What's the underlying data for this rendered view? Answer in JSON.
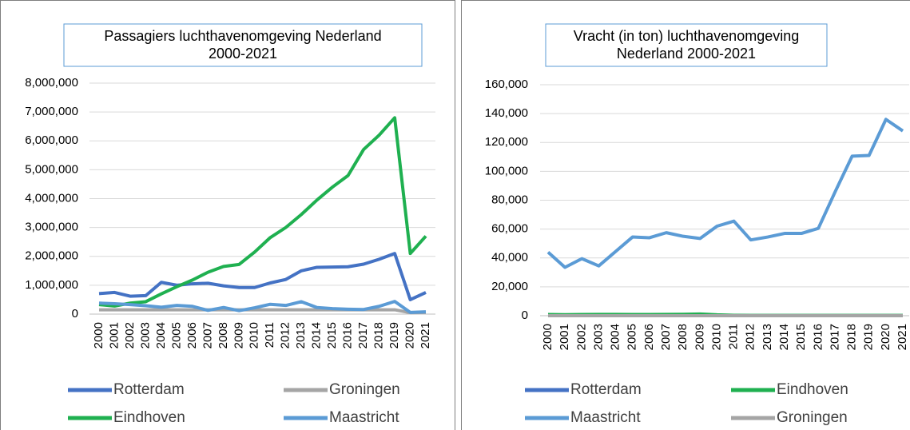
{
  "chart_data": [
    {
      "type": "line",
      "title": [
        "Passagiers luchthavenomgeving Nederland",
        "2000-2021"
      ],
      "categories": [
        "2000",
        "2001",
        "2002",
        "2003",
        "2004",
        "2005",
        "2006",
        "2007",
        "2008",
        "2009",
        "2010",
        "2011",
        "2012",
        "2013",
        "2014",
        "2015",
        "2016",
        "2017",
        "2018",
        "2019",
        "2020",
        "2021"
      ],
      "ylim": [
        0,
        8000000
      ],
      "yticks": [
        0,
        {
          "value": 1000000,
          "label": "1,000,000"
        },
        {
          "value": 2000000,
          "label": "2,000,000"
        },
        {
          "value": 3000000,
          "label": "3,000,000"
        },
        {
          "value": 4000000,
          "label": "4,000,000"
        },
        {
          "value": 5000000,
          "label": "5,000,000"
        },
        {
          "value": 6000000,
          "label": "6,000,000"
        },
        {
          "value": 7000000,
          "label": "7,000,000"
        },
        {
          "value": 8000000,
          "label": "8,000,000"
        }
      ],
      "grid": true,
      "series": [
        {
          "name": "Rotterdam",
          "color": "#4472c4",
          "values": [
            710000,
            750000,
            620000,
            640000,
            1100000,
            1000000,
            1050000,
            1070000,
            980000,
            920000,
            920000,
            1080000,
            1200000,
            1500000,
            1620000,
            1630000,
            1640000,
            1730000,
            1900000,
            2100000,
            500000,
            750000
          ]
        },
        {
          "name": "Groningen",
          "color": "#a5a5a5",
          "values": [
            150000,
            150000,
            150000,
            150000,
            150000,
            150000,
            150000,
            150000,
            150000,
            150000,
            150000,
            150000,
            150000,
            150000,
            150000,
            150000,
            150000,
            150000,
            150000,
            150000,
            50000,
            60000
          ]
        },
        {
          "name": "Eindhoven",
          "color": "#1fb050",
          "values": [
            330000,
            280000,
            380000,
            430000,
            700000,
            950000,
            1180000,
            1450000,
            1650000,
            1720000,
            2150000,
            2650000,
            3000000,
            3450000,
            3950000,
            4400000,
            4800000,
            5700000,
            6200000,
            6800000,
            2100000,
            2700000
          ]
        },
        {
          "name": "Maastricht",
          "color": "#5b9bd5",
          "values": [
            380000,
            360000,
            330000,
            290000,
            240000,
            300000,
            270000,
            130000,
            230000,
            120000,
            220000,
            340000,
            300000,
            430000,
            230000,
            190000,
            170000,
            160000,
            270000,
            440000,
            60000,
            80000
          ]
        }
      ]
    },
    {
      "type": "line",
      "title": [
        "Vracht (in ton) luchthavenomgeving",
        "Nederland 2000-2021"
      ],
      "categories": [
        "2000",
        "2001",
        "2002",
        "2003",
        "2004",
        "2005",
        "2006",
        "2007",
        "2008",
        "2009",
        "2010",
        "2011",
        "2012",
        "2013",
        "2014",
        "2015",
        "2016",
        "2017",
        "2018",
        "2019",
        "2020",
        "2021"
      ],
      "ylim": [
        0,
        160000
      ],
      "yticks": [
        0,
        {
          "value": 20000,
          "label": "20,000"
        },
        {
          "value": 40000,
          "label": "40,000"
        },
        {
          "value": 60000,
          "label": "60,000"
        },
        {
          "value": 80000,
          "label": "80,000"
        },
        {
          "value": 100000,
          "label": "100,000"
        },
        {
          "value": 120000,
          "label": "120,000"
        },
        {
          "value": 140000,
          "label": "140,000"
        },
        {
          "value": 160000,
          "label": "160,000"
        }
      ],
      "grid": true,
      "series": [
        {
          "name": "Rotterdam",
          "color": "#4472c4",
          "values": [
            600,
            500,
            500,
            600,
            600,
            500,
            500,
            500,
            500,
            500,
            300,
            200,
            100,
            100,
            100,
            100,
            100,
            100,
            100,
            100,
            100,
            100
          ]
        },
        {
          "name": "Eindhoven",
          "color": "#1fb050",
          "values": [
            800,
            700,
            800,
            900,
            900,
            800,
            800,
            900,
            1000,
            1200,
            600,
            300,
            200,
            200,
            200,
            200,
            200,
            200,
            200,
            200,
            200,
            200
          ]
        },
        {
          "name": "Maastricht",
          "color": "#5b9bd5",
          "values": [
            44000,
            33500,
            39500,
            34500,
            44500,
            54500,
            54000,
            57500,
            55000,
            53500,
            62000,
            65500,
            52500,
            54500,
            57000,
            57000,
            60500,
            86000,
            110500,
            111000,
            136000,
            128000
          ]
        },
        {
          "name": "Groningen",
          "color": "#a5a5a5",
          "values": [
            0,
            0,
            0,
            0,
            0,
            0,
            0,
            0,
            0,
            0,
            0,
            0,
            0,
            0,
            0,
            0,
            0,
            0,
            0,
            0,
            0,
            0
          ]
        }
      ]
    }
  ]
}
